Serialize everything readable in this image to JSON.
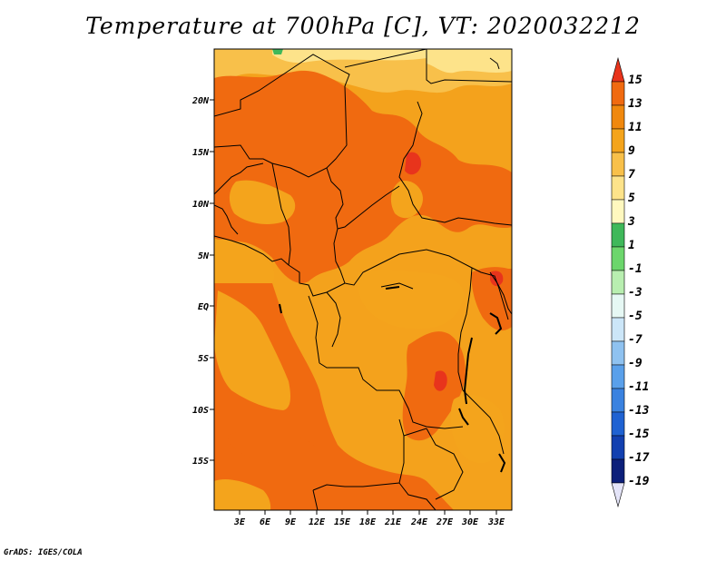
{
  "title": "Temperature at 700hPa [C], VT: 2020032212",
  "credit": "GrADS: IGES/COLA",
  "map": {
    "lat_labels": [
      "20N",
      "15N",
      "10N",
      "5N",
      "EQ",
      "5S",
      "10S",
      "15S"
    ],
    "lon_labels": [
      "3E",
      "6E",
      "9E",
      "12E",
      "15E",
      "18E",
      "21E",
      "24E",
      "27E",
      "30E",
      "33E"
    ]
  },
  "colorbar": {
    "levels": [
      "15",
      "13",
      "11",
      "9",
      "7",
      "5",
      "3",
      "1",
      "-1",
      "-3",
      "-5",
      "-7",
      "-9",
      "-11",
      "-13",
      "-15",
      "-17",
      "-19"
    ],
    "colors": [
      "#e8341c",
      "#f06a10",
      "#f0880e",
      "#f4a41c",
      "#f8c04a",
      "#fde38a",
      "#fff8bf",
      "#3fb85a",
      "#6cd66c",
      "#b8eeb0",
      "#e6f8f4",
      "#cce6f8",
      "#8fc2f0",
      "#5aa0ea",
      "#3a82e0",
      "#1f62d2",
      "#1240b0",
      "#0c1f7a",
      "#e4e4f8"
    ]
  }
}
